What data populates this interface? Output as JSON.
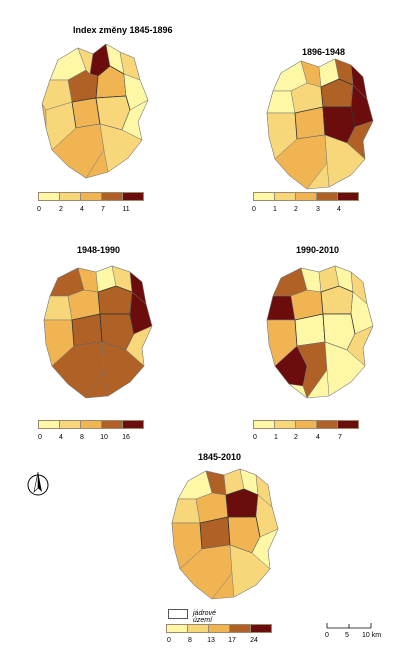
{
  "panels": [
    {
      "title": "Index změny 1845-1896",
      "ticks": [
        "0",
        "2",
        "4",
        "7",
        "11"
      ],
      "colors": [
        "#fef8a6",
        "#f7d77a",
        "#f0b552",
        "#b06226",
        "#6b0d0d"
      ]
    },
    {
      "title": "1896-1948",
      "ticks": [
        "0",
        "1",
        "2",
        "3",
        "4"
      ],
      "colors": [
        "#fef8a6",
        "#f7d77a",
        "#f0b552",
        "#b06226",
        "#6b0d0d"
      ]
    },
    {
      "title": "1948-1990",
      "ticks": [
        "0",
        "4",
        "8",
        "10",
        "16"
      ],
      "colors": [
        "#fef8a6",
        "#f7d77a",
        "#f0b552",
        "#b06226",
        "#6b0d0d"
      ]
    },
    {
      "title": "1990-2010",
      "ticks": [
        "0",
        "1",
        "2",
        "4",
        "7"
      ],
      "colors": [
        "#fef8a6",
        "#f7d77a",
        "#f0b552",
        "#b06226",
        "#6b0d0d"
      ]
    },
    {
      "title": "1845-2010",
      "ticks": [
        "0",
        "8",
        "13",
        "17",
        "24"
      ],
      "colors": [
        "#fef8a6",
        "#f7d77a",
        "#f0b552",
        "#b06226",
        "#6b0d0d"
      ]
    }
  ],
  "core_area_label": "jádrové území",
  "scale": {
    "ticks": [
      "0",
      "5",
      "10 km"
    ]
  },
  "north_arrow_icon": "north-arrow-icon"
}
